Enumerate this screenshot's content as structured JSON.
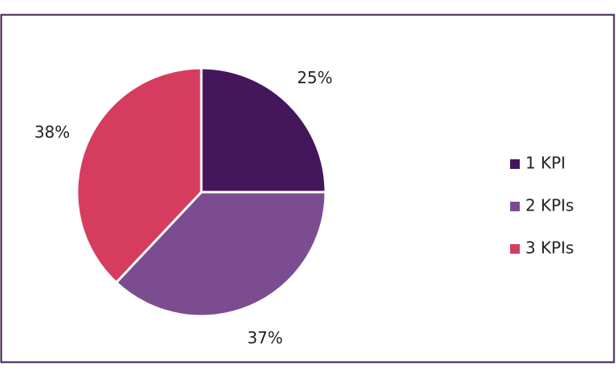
{
  "chart_data": {
    "type": "pie",
    "categories": [
      "1 KPI",
      "2 KPIs",
      "3 KPIs"
    ],
    "values": [
      25,
      37,
      38
    ],
    "value_labels": [
      "25%",
      "37%",
      "38%"
    ],
    "colors": [
      "#44165c",
      "#7b4d90",
      "#d63c5e"
    ],
    "legend": "right"
  }
}
